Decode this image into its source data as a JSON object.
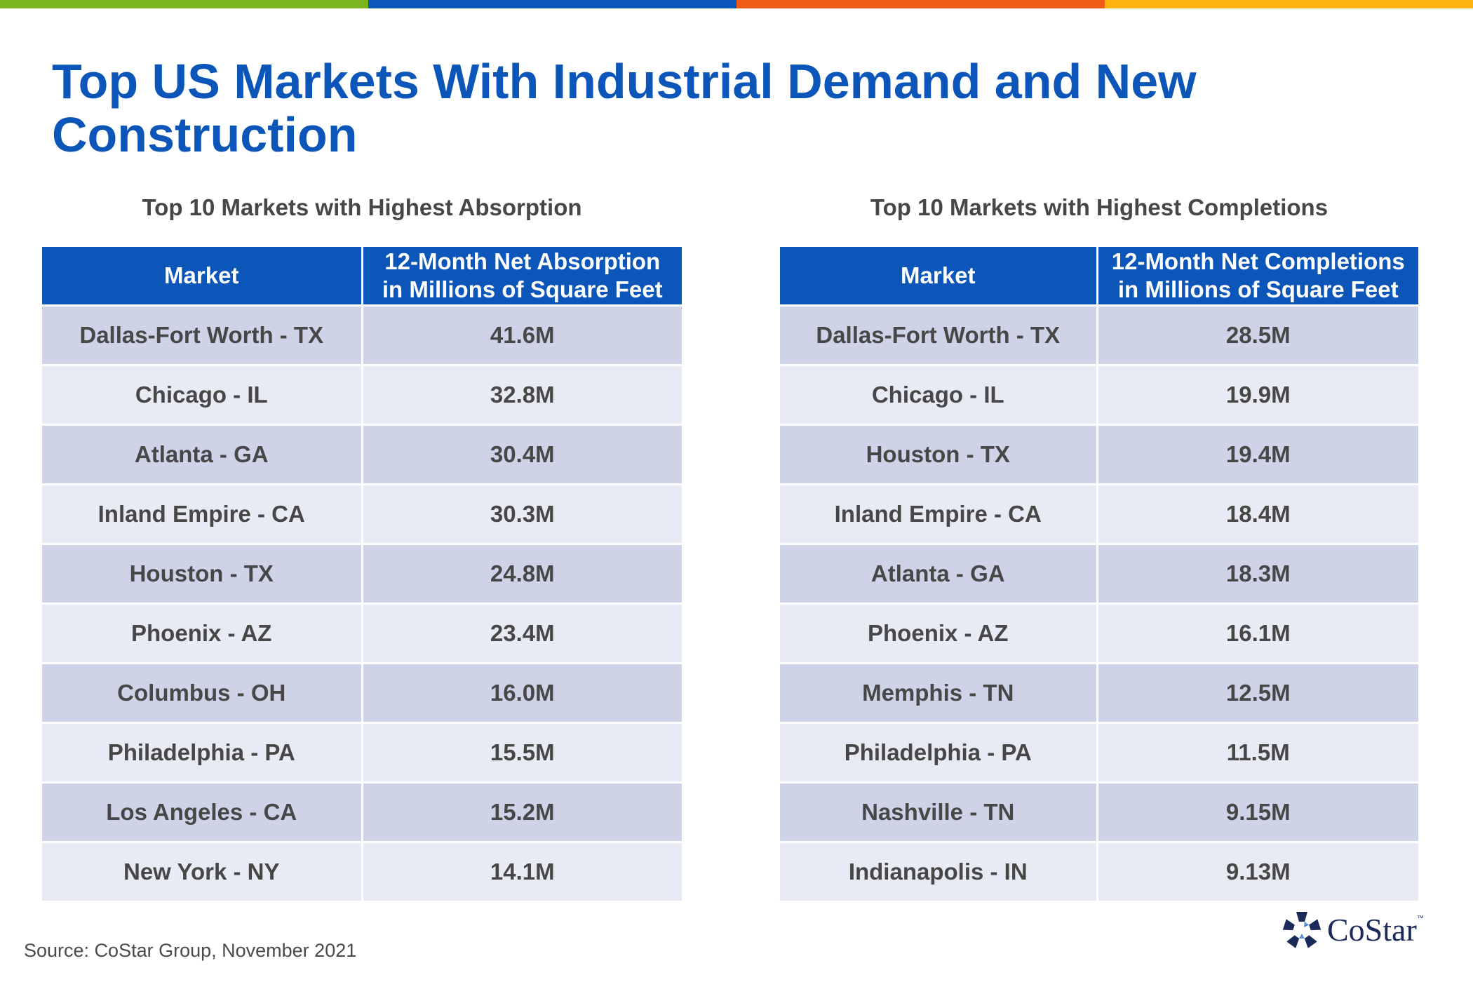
{
  "title": "Top US Markets With Industrial Demand and New Construction",
  "colors": {
    "title": "#0b56b8",
    "header_bg": "#0b56b8",
    "row_dark": "#ced3e8",
    "row_light": "#e8eaf4",
    "top_bar": [
      "#7ab51d",
      "#0b56b8",
      "#f05a14",
      "#ffb30f"
    ]
  },
  "absorption": {
    "subtitle": "Top 10 Markets with Highest Absorption",
    "header_market": "Market",
    "header_value_line1": "12-Month Net Absorption",
    "header_value_line2": "in Millions of Square Feet",
    "rows": [
      {
        "market": "Dallas-Fort Worth - TX",
        "value": "41.6M"
      },
      {
        "market": "Chicago - IL",
        "value": "32.8M"
      },
      {
        "market": "Atlanta - GA",
        "value": "30.4M"
      },
      {
        "market": "Inland Empire - CA",
        "value": "30.3M"
      },
      {
        "market": "Houston - TX",
        "value": "24.8M"
      },
      {
        "market": "Phoenix - AZ",
        "value": "23.4M"
      },
      {
        "market": "Columbus - OH",
        "value": "16.0M"
      },
      {
        "market": "Philadelphia - PA",
        "value": "15.5M"
      },
      {
        "market": "Los Angeles - CA",
        "value": "15.2M"
      },
      {
        "market": "New York - NY",
        "value": "14.1M"
      }
    ]
  },
  "completions": {
    "subtitle": "Top 10 Markets with Highest Completions",
    "header_market": "Market",
    "header_value_line1": "12-Month Net Completions",
    "header_value_line2": "in Millions of Square Feet",
    "rows": [
      {
        "market": "Dallas-Fort Worth - TX",
        "value": "28.5M"
      },
      {
        "market": "Chicago - IL",
        "value": "19.9M"
      },
      {
        "market": "Houston - TX",
        "value": "19.4M"
      },
      {
        "market": "Inland Empire - CA",
        "value": "18.4M"
      },
      {
        "market": "Atlanta - GA",
        "value": "18.3M"
      },
      {
        "market": "Phoenix - AZ",
        "value": "16.1M"
      },
      {
        "market": "Memphis - TN",
        "value": "12.5M"
      },
      {
        "market": "Philadelphia - PA",
        "value": "11.5M"
      },
      {
        "market": "Nashville - TN",
        "value": "9.15M"
      },
      {
        "market": "Indianapolis - IN",
        "value": "9.13M"
      }
    ]
  },
  "source": "Source: CoStar Group, November 2021",
  "logo": {
    "text": "CoStar",
    "tm": "™",
    "icon": "costar-star-icon"
  }
}
